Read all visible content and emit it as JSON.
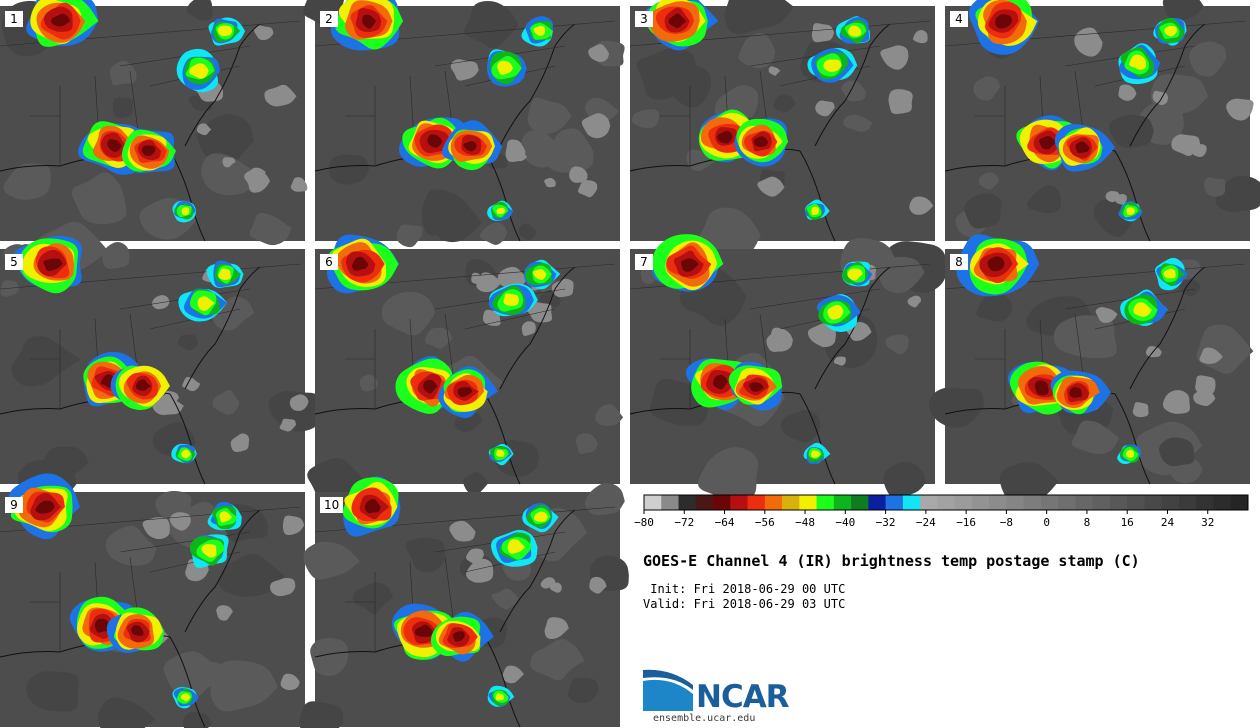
{
  "chart_data": {
    "type": "heatmap",
    "title": "GOES-E Channel 4 (IR) brightness temp postage stamp (C)",
    "init": "Init: Fri 2018-06-29 00 UTC",
    "valid": "Valid: Fri 2018-06-29 03 UTC",
    "panels": [
      "1",
      "2",
      "3",
      "4",
      "5",
      "6",
      "7",
      "8",
      "9",
      "10"
    ],
    "colorbar": {
      "unit": "C",
      "range": [
        -80,
        40
      ],
      "ticks": [
        -80,
        -72,
        -64,
        -56,
        -48,
        -40,
        -32,
        -24,
        -16,
        -8,
        0,
        8,
        16,
        24,
        32
      ],
      "colors": [
        "#cfcfcf",
        "#8a8a8a",
        "#2c2c2c",
        "#4a1616",
        "#6b0606",
        "#b50f0f",
        "#ec2e0e",
        "#f26a0a",
        "#d8b10c",
        "#f0f000",
        "#1cff1c",
        "#0cb51c",
        "#0d7d1f",
        "#0a20a0",
        "#1d72e6",
        "#10e6f5",
        "#a9a9a9",
        "#a2a2a2",
        "#9b9b9b",
        "#939393",
        "#8c8c8c",
        "#858585",
        "#7d7d7d",
        "#767676",
        "#6f6f6f",
        "#676767",
        "#606060",
        "#585858",
        "#515151",
        "#494949",
        "#424242",
        "#3b3b3b",
        "#333333",
        "#2c2c2c",
        "#252525"
      ]
    }
  },
  "footer": {
    "logo_text": "NCAR",
    "url": "ensemble.ucar.edu"
  }
}
